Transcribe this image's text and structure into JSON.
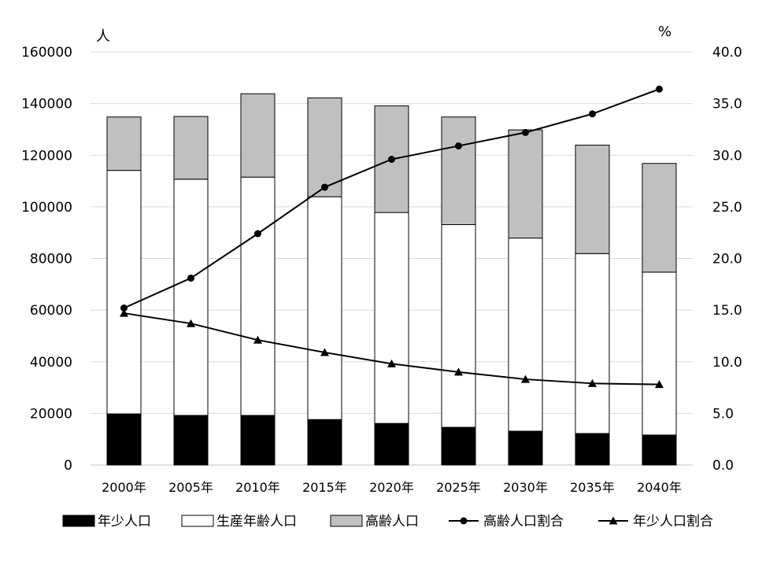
{
  "chart_data": {
    "type": "bar",
    "stacked": true,
    "categories": [
      "2000年",
      "2005年",
      "2010年",
      "2015年",
      "2020年",
      "2025年",
      "2030年",
      "2035年",
      "2040年"
    ],
    "left_axis": {
      "label": "人",
      "ylim": [
        0,
        160000
      ],
      "ticks": [
        "0",
        "20000",
        "40000",
        "60000",
        "80000",
        "100000",
        "120000",
        "140000",
        "160000"
      ]
    },
    "right_axis": {
      "label": "%",
      "ylim": [
        0,
        40
      ],
      "ticks": [
        "0.0",
        "5.0",
        "10.0",
        "15.0",
        "20.0",
        "25.0",
        "30.0",
        "35.0",
        "40.0"
      ]
    },
    "grid": true,
    "legend_position": "bottom",
    "series": [
      {
        "name": "年少人口",
        "kind": "bar",
        "axis": "left",
        "color": "#000000",
        "values": [
          19800,
          19200,
          19200,
          17600,
          16100,
          14600,
          13100,
          12200,
          11600
        ]
      },
      {
        "name": "生産年齢人口",
        "kind": "bar",
        "axis": "left",
        "color": "#ffffff",
        "values": [
          94300,
          91500,
          92300,
          86300,
          81700,
          78500,
          74800,
          69700,
          63100
        ]
      },
      {
        "name": "高齢人口",
        "kind": "bar",
        "axis": "left",
        "color": "#c0c0c0",
        "values": [
          20700,
          24300,
          32300,
          38300,
          41300,
          41700,
          41900,
          42000,
          42100
        ]
      },
      {
        "name": "高齢人口割合",
        "kind": "line",
        "axis": "right",
        "marker": "circle",
        "color": "#000000",
        "values": [
          15.2,
          18.1,
          22.4,
          26.9,
          29.6,
          30.9,
          32.2,
          34.0,
          36.4
        ]
      },
      {
        "name": "年少人口割合",
        "kind": "line",
        "axis": "right",
        "marker": "triangle",
        "color": "#000000",
        "values": [
          14.7,
          13.7,
          12.1,
          10.9,
          9.8,
          9.0,
          8.3,
          7.9,
          7.8
        ]
      }
    ]
  }
}
